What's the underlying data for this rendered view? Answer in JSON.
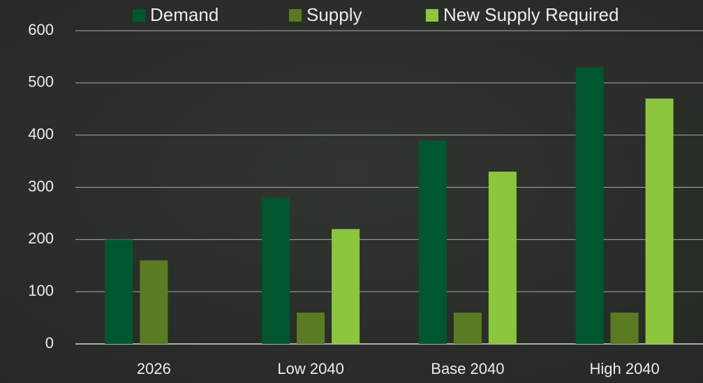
{
  "chart_data": {
    "type": "bar",
    "categories": [
      "2026",
      "Low 2040",
      "Base 2040",
      "High 2040"
    ],
    "series": [
      {
        "name": "Demand",
        "color": "#00572f",
        "values": [
          200,
          280,
          390,
          530
        ]
      },
      {
        "name": "Supply",
        "color": "#5b7b22",
        "values": [
          160,
          60,
          60,
          60
        ]
      },
      {
        "name": "New Supply Required",
        "color": "#8cc63e",
        "values": [
          null,
          220,
          330,
          470
        ]
      }
    ],
    "ylim": [
      0,
      600
    ],
    "yticks": [
      0,
      100,
      200,
      300,
      400,
      500,
      600
    ],
    "grid": true,
    "legend": "top"
  }
}
